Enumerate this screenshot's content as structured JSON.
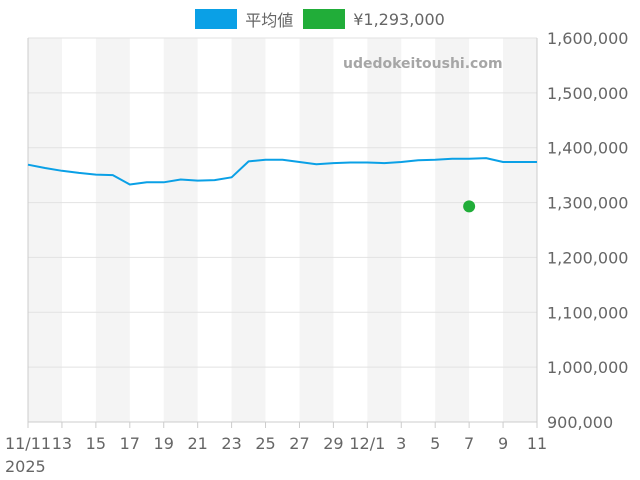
{
  "watermark": "udedokeitoushi.com",
  "legend": [
    {
      "label": "平均値",
      "color": "#0aa0e6"
    },
    {
      "label": "¥1,293,000",
      "color": "#21ad39"
    }
  ],
  "chart_data": {
    "type": "line",
    "x": [
      "11/11",
      "11/12",
      "11/13",
      "11/14",
      "11/15",
      "11/16",
      "11/17",
      "11/18",
      "11/19",
      "11/20",
      "11/21",
      "11/22",
      "11/23",
      "11/24",
      "11/25",
      "11/26",
      "11/27",
      "11/28",
      "11/29",
      "11/30",
      "12/1",
      "12/2",
      "12/3",
      "12/4",
      "12/5",
      "12/6",
      "12/7",
      "12/8",
      "12/9",
      "12/10",
      "12/11"
    ],
    "x_tick_labels": [
      "11/11",
      "13",
      "15",
      "17",
      "19",
      "21",
      "23",
      "25",
      "27",
      "29",
      "12/1",
      "3",
      "5",
      "7",
      "9",
      "11"
    ],
    "x_year_label": "2025",
    "ylim": [
      900000,
      1600000
    ],
    "y_tick_labels": [
      "1,600,000",
      "1,500,000",
      "1,400,000",
      "1,300,000",
      "1,200,000",
      "1,100,000",
      "1,000,000",
      "900,000"
    ],
    "series": [
      {
        "name": "平均値",
        "color": "#0aa0e6",
        "values": [
          1369000,
          1363000,
          1358000,
          1354000,
          1351000,
          1350000,
          1333000,
          1337000,
          1337000,
          1342000,
          1340000,
          1341000,
          1346000,
          1375000,
          1378000,
          1378000,
          1374000,
          1370000,
          1372000,
          1373000,
          1373000,
          1372000,
          1374000,
          1377000,
          1378000,
          1380000,
          1380000,
          1381000,
          1374000,
          1374000,
          1374000
        ]
      },
      {
        "name": "¥1,293,000",
        "color": "#21ad39",
        "points": [
          {
            "x": "12/7",
            "y": 1293000
          }
        ]
      }
    ],
    "grid": true,
    "legend_position": "top"
  }
}
